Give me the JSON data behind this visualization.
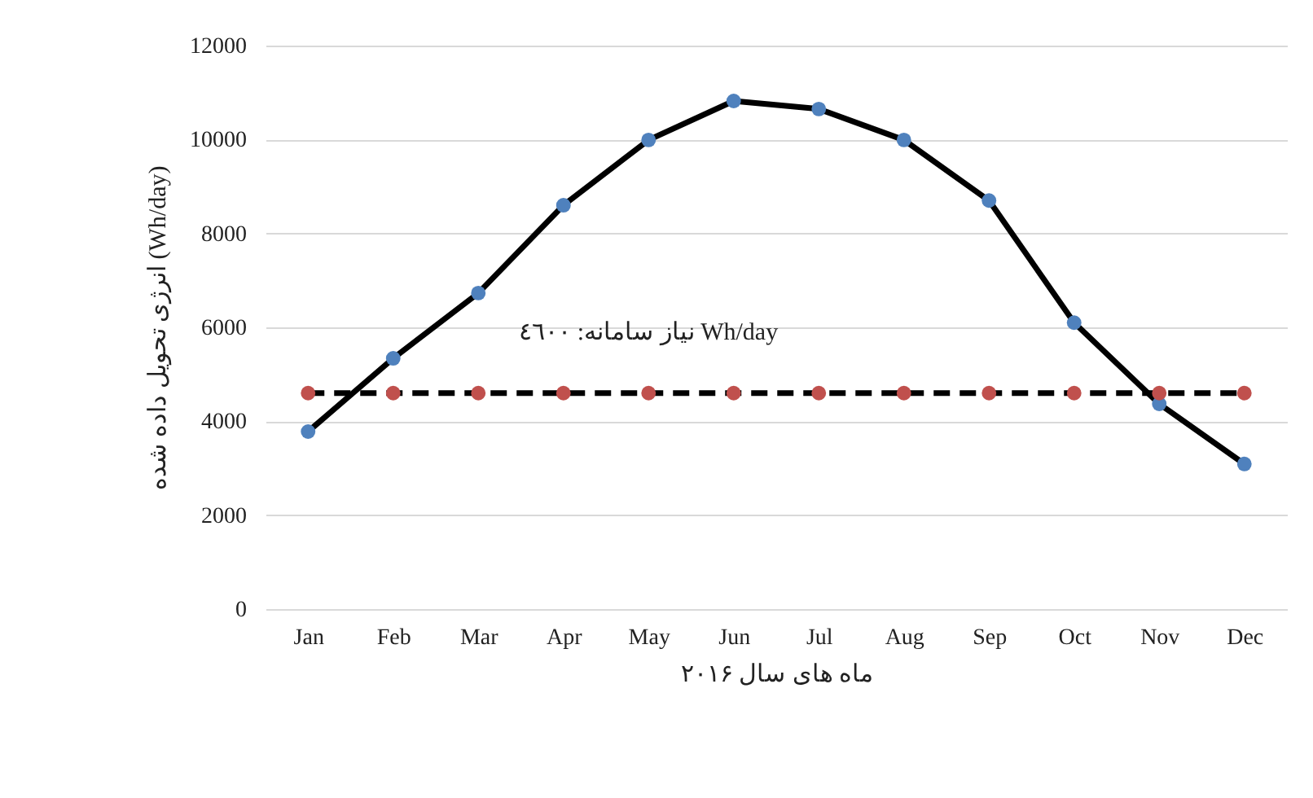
{
  "chart_data": {
    "type": "line",
    "xlabel": "ماه های سال ۲۰۱۶",
    "ylabel": "انرژی تحویل داده شده (Wh/day)",
    "categories": [
      "Jan",
      "Feb",
      "Mar",
      "Apr",
      "May",
      "Jun",
      "Jul",
      "Aug",
      "Sep",
      "Oct",
      "Nov",
      "Dec"
    ],
    "series": [
      {
        "color": "#4f81bd",
        "line_style": "solid",
        "values": [
          3780,
          5340,
          6730,
          8600,
          9990,
          10820,
          10650,
          9990,
          8700,
          6100,
          4370,
          3090
        ]
      },
      {
        "color": "#c0504d",
        "line_style": "dashed",
        "values": [
          4600,
          4600,
          4600,
          4600,
          4600,
          4600,
          4600,
          4600,
          4600,
          4600,
          4600,
          4600
        ]
      }
    ],
    "annotations": [
      {
        "text": "نیاز سامانه: ٤٦٠٠ Wh/day",
        "x": "May",
        "y": 4600
      }
    ],
    "ylim": [
      0,
      12000
    ],
    "yticks": [
      0,
      2000,
      4000,
      6000,
      8000,
      10000,
      12000
    ],
    "grid": "y",
    "marker": "circle"
  }
}
